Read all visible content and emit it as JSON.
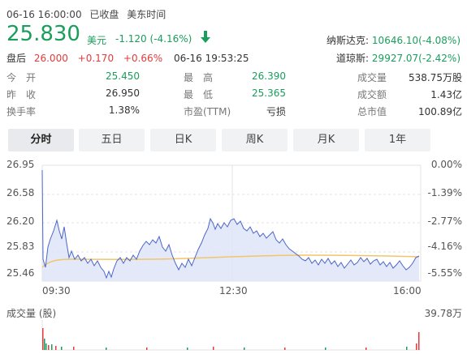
{
  "header": {
    "date_time": "06-16 16:00:00",
    "market_status": "已收盘",
    "timezone": "美东时间",
    "price": "25.830",
    "currency": "美元",
    "change": "-1.120",
    "change_pct": "(-4.16%)",
    "trend_arrow": "arrow-down-icon"
  },
  "after_hours": {
    "label": "盘后",
    "price": "26.000",
    "change": "+0.170",
    "change_pct": "+0.66%",
    "time": "06-16 19:53:25"
  },
  "indices": [
    {
      "name": "纳斯达克:",
      "value": "10646.10(-4.08%)"
    },
    {
      "name": "道琼斯:",
      "value": "29927.07(-2.42%)"
    }
  ],
  "stats": {
    "row1": [
      {
        "label": "今　开",
        "value": "25.450",
        "color": "green"
      },
      {
        "label": "最　高",
        "value": "26.390",
        "color": "green"
      },
      {
        "label": "成交量",
        "value": "538.75万股",
        "color": "dark"
      }
    ],
    "row2": [
      {
        "label": "昨　收",
        "value": "26.950",
        "color": "dark"
      },
      {
        "label": "最　低",
        "value": "25.365",
        "color": "green"
      },
      {
        "label": "成交额",
        "value": "1.43亿",
        "color": "dark"
      }
    ],
    "row3": [
      {
        "label": "换手率",
        "value": "1.38%",
        "color": "dark"
      },
      {
        "label": "市盈(TTM)",
        "value": "亏损",
        "color": "dark"
      },
      {
        "label": "总市值",
        "value": "100.89亿",
        "color": "dark"
      }
    ]
  },
  "tabs": [
    {
      "label": "分时",
      "active": true
    },
    {
      "label": "五日",
      "active": false
    },
    {
      "label": "日K",
      "active": false
    },
    {
      "label": "周K",
      "active": false
    },
    {
      "label": "月K",
      "active": false
    },
    {
      "label": "1年",
      "active": false
    }
  ],
  "chart": {
    "y_left": [
      "26.95",
      "26.58",
      "26.20",
      "25.83",
      "25.46"
    ],
    "y_right": [
      "0.00%",
      "-1.39%",
      "-2.77%",
      "-4.16%",
      "-5.55%"
    ],
    "x_labels": [
      "09:30",
      "12:30",
      "16:00"
    ],
    "volume_label": "成交量 (股)",
    "volume_max": "39.78万",
    "colors": {
      "price_line": "#4a66c9",
      "avg_line": "#f2c56b",
      "area": "#dde4f7",
      "grid": "#e3e3e3"
    }
  }
}
